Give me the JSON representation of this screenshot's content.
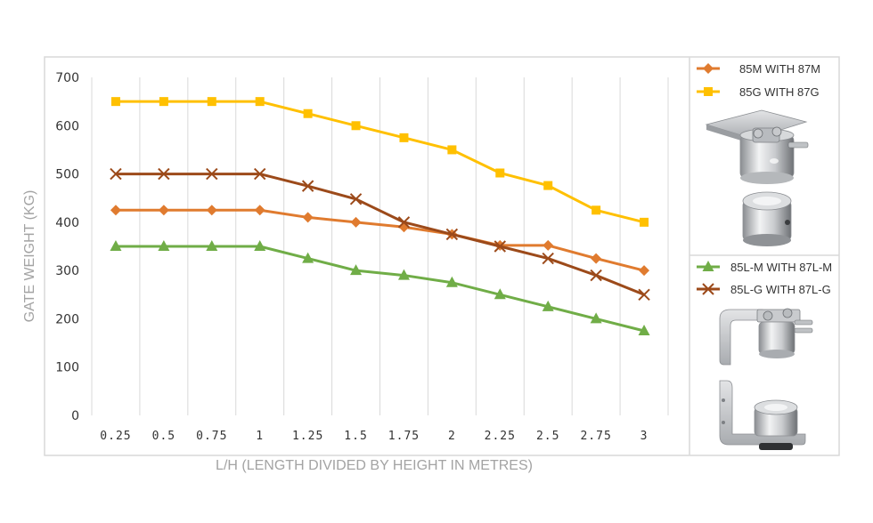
{
  "chart_data": {
    "type": "line",
    "xlabel": "L/H (LENGTH DIVIDED BY HEIGHT IN METRES)",
    "ylabel": "GATE WEIGHT (KG)",
    "categories": [
      "0.25",
      "0.5",
      "0.75",
      "1",
      "1.25",
      "1.5",
      "1.75",
      "2",
      "2.25",
      "2.5",
      "2.75",
      "3"
    ],
    "ylim": [
      0,
      700
    ],
    "yticks": [
      "0",
      "100",
      "200",
      "300",
      "400",
      "500",
      "600",
      "700"
    ],
    "grid": "vertical",
    "legend_position": "right",
    "series": [
      {
        "name": "85M WITH 87M",
        "marker": "diamond",
        "color": "#E07B2F",
        "values": [
          425,
          425,
          425,
          425,
          410,
          400,
          390,
          375,
          352,
          352,
          325,
          300
        ]
      },
      {
        "name": "85G WITH 87G",
        "marker": "square",
        "color": "#FFC000",
        "values": [
          650,
          650,
          650,
          650,
          625,
          600,
          575,
          550,
          502,
          476,
          425,
          400
        ]
      },
      {
        "name": "85L-M WITH 87L-M",
        "marker": "triangle",
        "color": "#70AD47",
        "values": [
          350,
          350,
          350,
          350,
          325,
          300,
          290,
          275,
          250,
          225,
          200,
          175
        ]
      },
      {
        "name": "85L-G WITH 87L-G",
        "marker": "x",
        "color": "#9C4A1A",
        "values": [
          500,
          500,
          500,
          500,
          475,
          448,
          400,
          375,
          350,
          325,
          290,
          250
        ]
      }
    ]
  },
  "legend": {
    "group1": [
      "85M WITH 87M",
      "85G WITH 87G"
    ],
    "group2": [
      "85L-M WITH 87L-M",
      "85L-G WITH 87L-G"
    ]
  },
  "colors": {
    "frame": "#d9d9d9",
    "grid": "#d9d9d9",
    "axis_title": "#a3a3a3"
  }
}
